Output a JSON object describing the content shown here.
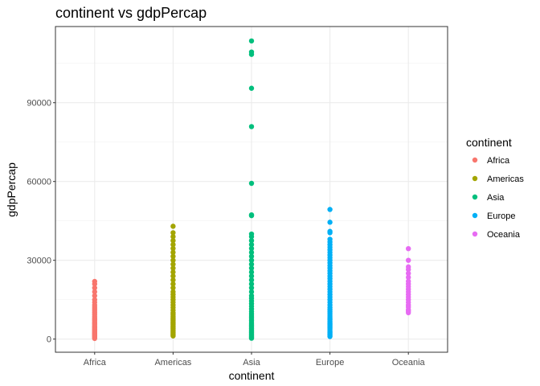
{
  "chart_data": {
    "type": "scatter",
    "title": "continent vs gdpPercap",
    "xlabel": "continent",
    "ylabel": "gdpPercap",
    "categories": [
      "Africa",
      "Americas",
      "Asia",
      "Europe",
      "Oceania"
    ],
    "ylim": [
      -5000,
      119000
    ],
    "yticks": [
      0,
      30000,
      60000,
      90000
    ],
    "ytick_labels": [
      "0",
      "30000",
      "60000",
      "90000"
    ],
    "grid": true,
    "legend": {
      "title": "continent",
      "position": "right"
    },
    "series": [
      {
        "name": "Africa",
        "color": "#F8766D",
        "values": [
          241,
          600,
          900,
          1200,
          1500,
          1800,
          2100,
          2400,
          2700,
          3000,
          3400,
          3800,
          4200,
          4600,
          5000,
          5500,
          6000,
          6500,
          7000,
          7500,
          8000,
          8700,
          9400,
          10100,
          10800,
          11500,
          12200,
          13000,
          14000,
          15000,
          16500,
          18000,
          19500,
          21000,
          21951
        ]
      },
      {
        "name": "Americas",
        "color": "#A3A500",
        "values": [
          1202,
          1600,
          2000,
          2500,
          3000,
          3500,
          4000,
          4500,
          5000,
          5500,
          6000,
          6500,
          7000,
          7500,
          8000,
          8700,
          9400,
          10000,
          11000,
          12000,
          13000,
          14000,
          15000,
          16000,
          17000,
          18000,
          19500,
          21000,
          22500,
          24000,
          25500,
          27000,
          28500,
          30000,
          31500,
          33000,
          34500,
          36000,
          37500,
          39000,
          40500,
          42952
        ]
      },
      {
        "name": "Asia",
        "color": "#00BF7D",
        "values": [
          331,
          700,
          1100,
          1500,
          2000,
          2500,
          3000,
          3500,
          4000,
          4600,
          5200,
          5800,
          6500,
          7200,
          8000,
          8800,
          9600,
          10500,
          11500,
          12500,
          13500,
          14500,
          15500,
          16500,
          18000,
          19500,
          21000,
          22500,
          24000,
          25500,
          27000,
          28500,
          30000,
          31500,
          33000,
          34500,
          36000,
          37500,
          39000,
          40000,
          47000,
          47300,
          59300,
          80900,
          95500,
          108400,
          109300,
          113523
        ]
      },
      {
        "name": "Europe",
        "color": "#00B0F6",
        "values": [
          974,
          1500,
          2000,
          2500,
          3000,
          3600,
          4200,
          4800,
          5400,
          6000,
          6700,
          7400,
          8100,
          8800,
          9600,
          10400,
          11200,
          12000,
          13000,
          14000,
          15000,
          16000,
          17000,
          18000,
          19000,
          20000,
          21000,
          22000,
          23000,
          24000,
          25000,
          26000,
          27000,
          28000,
          29000,
          30000,
          31000,
          32000,
          33000,
          34000,
          35000,
          36000,
          37000,
          38000,
          40500,
          41000,
          44500,
          49357
        ]
      },
      {
        "name": "Oceania",
        "color": "#E76BF3",
        "values": [
          10040,
          10600,
          11200,
          12200,
          13000,
          14000,
          15000,
          16000,
          17000,
          18000,
          19000,
          20000,
          21000,
          22000,
          23500,
          25000,
          26500,
          27500,
          30000,
          34435
        ]
      }
    ]
  }
}
